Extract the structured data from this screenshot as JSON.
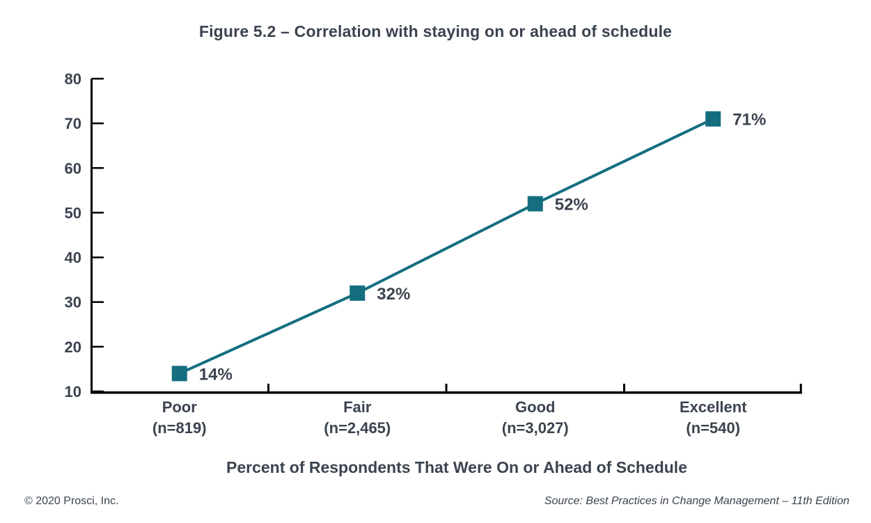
{
  "figure": {
    "title": "Figure 5.2 – Correlation with staying on or ahead of schedule",
    "xaxis_title": "Percent of Respondents That Were On or Ahead of Schedule"
  },
  "chart_data": {
    "type": "line",
    "title": "Figure 5.2 – Correlation with staying on or ahead of schedule",
    "xlabel": "Percent of Respondents That Were On or Ahead of Schedule",
    "ylabel": "",
    "categories": [
      "Poor",
      "Fair",
      "Good",
      "Excellent"
    ],
    "category_sublabels": [
      "(n=819)",
      "(n=2,465)",
      "(n=3,027)",
      "(n=540)"
    ],
    "values": [
      14,
      32,
      52,
      71
    ],
    "data_labels": [
      "14%",
      "32%",
      "52%",
      "71%"
    ],
    "ylim": [
      10,
      80
    ],
    "yticks": [
      10,
      20,
      30,
      40,
      50,
      60,
      70,
      80
    ],
    "grid": false,
    "legend": "none",
    "marker": "square",
    "line_color": "#146e80"
  },
  "colors": {
    "accent_teal": "#146e80",
    "text": "#3b434f",
    "axis": "#000000"
  },
  "footer": {
    "copyright": "© 2020 Prosci, Inc.",
    "source_prefix": "Source: ",
    "source_title": "Best Practices in Change Management – 11th Edition"
  }
}
